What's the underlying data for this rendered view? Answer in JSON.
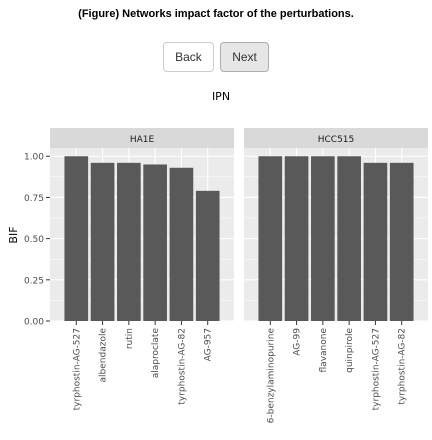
{
  "page": {
    "title": "(Figure) Networks impact factor of the perturbations."
  },
  "nav": {
    "back_label": "Back",
    "next_label": "Next",
    "active": "Next"
  },
  "colors": {
    "bar": "#595959",
    "panel_background": "#ebebeb",
    "strip_background": "#d9d9d9",
    "grid": "#ffffff"
  },
  "chart_data": {
    "type": "bar",
    "title": "IPN",
    "ylabel": "BIF",
    "xlabel": "",
    "ylim": [
      0,
      1.05
    ],
    "yticks": [
      0.0,
      0.25,
      0.5,
      0.75,
      1.0
    ],
    "ytick_labels": [
      "0.00",
      "0.25",
      "0.50",
      "0.75",
      "1.00"
    ],
    "grid": true,
    "panels": [
      {
        "name": "HA1E",
        "categories": [
          "tyrphostin-AG-527",
          "albendazole",
          "rutin",
          "alaproclate",
          "tyrphostin-AG-82",
          "AG-957"
        ],
        "values": [
          1.0,
          0.96,
          0.96,
          0.95,
          0.93,
          0.79
        ]
      },
      {
        "name": "HCC515",
        "categories": [
          "6-benzylaminopurine",
          "AG-99",
          "flavanone",
          "quinpirole",
          "tyrphostin-AG-527",
          "tyrphostin-AG-82"
        ],
        "values": [
          1.0,
          1.0,
          1.0,
          1.0,
          0.96,
          0.96
        ]
      }
    ]
  }
}
